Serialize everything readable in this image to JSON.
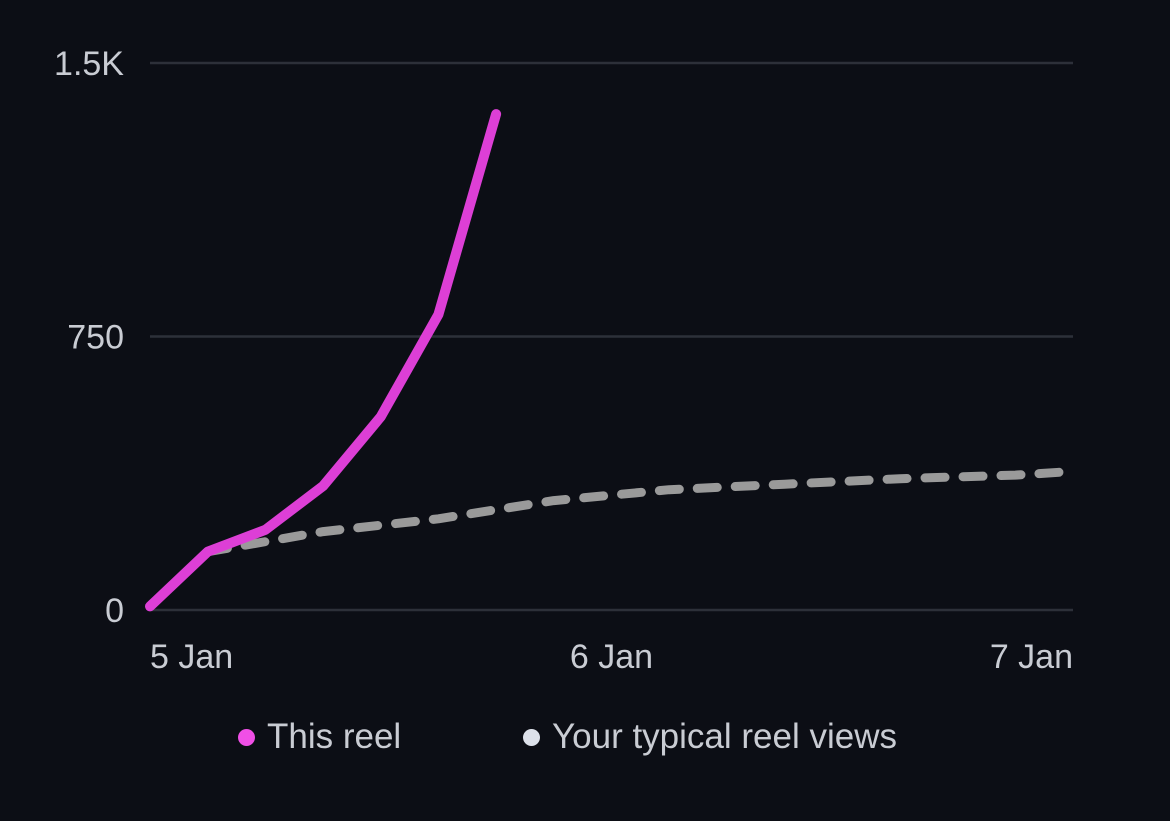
{
  "chart_data": {
    "type": "line",
    "x_ticks": [
      "5 Jan",
      "6 Jan",
      "7 Jan"
    ],
    "y_ticks": [
      "0",
      "750",
      "1.5K"
    ],
    "ylim": [
      0,
      1500
    ],
    "xlim": [
      "5 Jan",
      "7 Jan"
    ],
    "grid": true,
    "legend_position": "bottom",
    "series": [
      {
        "name": "This reel",
        "color": "#dd3fd6",
        "style": "solid",
        "x": [
          "5 Jan 00:00",
          "5 Jan 03:00",
          "5 Jan 06:00",
          "5 Jan 09:00",
          "5 Jan 12:00",
          "5 Jan 15:00",
          "5 Jan 18:00"
        ],
        "values": [
          10,
          160,
          220,
          340,
          530,
          810,
          1360
        ]
      },
      {
        "name": "Your typical reel views",
        "color": "#9a9a9a",
        "style": "dashed",
        "x": [
          "5 Jan 03:00",
          "5 Jan 09:00",
          "5 Jan 15:00",
          "5 Jan 21:00",
          "6 Jan 03:00",
          "6 Jan 09:00",
          "6 Jan 15:00",
          "6 Jan 21:00",
          "7 Jan 00:00"
        ],
        "values": [
          160,
          215,
          250,
          300,
          330,
          345,
          360,
          370,
          380
        ]
      }
    ],
    "legend": {
      "items": [
        {
          "label": "This reel",
          "dot_color": "#f04fe6"
        },
        {
          "label": "Your typical reel views",
          "dot_color": "#dde1ea"
        }
      ]
    }
  }
}
